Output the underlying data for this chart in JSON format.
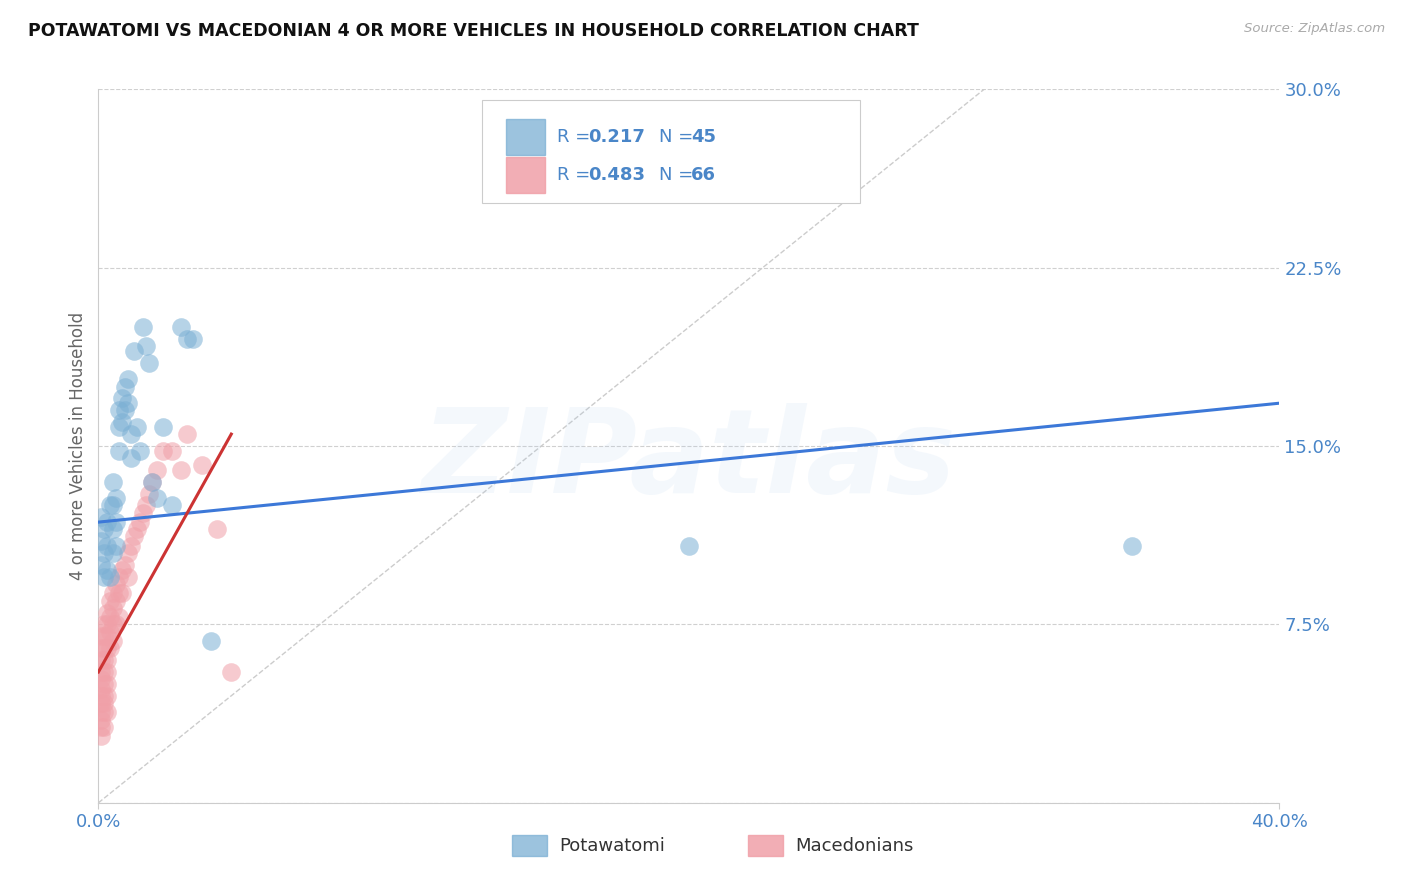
{
  "title": "POTAWATOMI VS MACEDONIAN 4 OR MORE VEHICLES IN HOUSEHOLD CORRELATION CHART",
  "source": "Source: ZipAtlas.com",
  "ylabel": "4 or more Vehicles in Household",
  "xlim": [
    0.0,
    0.4
  ],
  "ylim": [
    0.0,
    0.3
  ],
  "yticks": [
    0.0,
    0.075,
    0.15,
    0.225,
    0.3
  ],
  "color_blue": "#7bafd4",
  "color_pink": "#f0a0a8",
  "color_blue_line": "#3c78d8",
  "color_pink_line": "#cc3333",
  "color_diag": "#cccccc",
  "color_text_blue": "#4a86c8",
  "blue_r": "0.217",
  "blue_n": "45",
  "pink_r": "0.483",
  "pink_n": "66",
  "watermark": "ZIPatlas",
  "label_potawatomi": "Potawatomi",
  "label_macedonians": "Macedonians",
  "potawatomi_x": [
    0.001,
    0.001,
    0.001,
    0.002,
    0.002,
    0.002,
    0.003,
    0.003,
    0.003,
    0.004,
    0.004,
    0.005,
    0.005,
    0.005,
    0.005,
    0.006,
    0.006,
    0.006,
    0.007,
    0.007,
    0.007,
    0.008,
    0.008,
    0.009,
    0.009,
    0.01,
    0.01,
    0.011,
    0.011,
    0.012,
    0.013,
    0.014,
    0.015,
    0.016,
    0.017,
    0.018,
    0.02,
    0.022,
    0.025,
    0.028,
    0.03,
    0.032,
    0.038,
    0.2,
    0.35
  ],
  "potawatomi_y": [
    0.12,
    0.11,
    0.1,
    0.115,
    0.105,
    0.095,
    0.118,
    0.108,
    0.098,
    0.125,
    0.095,
    0.135,
    0.125,
    0.115,
    0.105,
    0.128,
    0.118,
    0.108,
    0.165,
    0.158,
    0.148,
    0.17,
    0.16,
    0.175,
    0.165,
    0.178,
    0.168,
    0.155,
    0.145,
    0.19,
    0.158,
    0.148,
    0.2,
    0.192,
    0.185,
    0.135,
    0.128,
    0.158,
    0.125,
    0.2,
    0.195,
    0.195,
    0.068,
    0.108,
    0.108
  ],
  "macedonian_x": [
    0.001,
    0.001,
    0.001,
    0.001,
    0.001,
    0.001,
    0.001,
    0.001,
    0.001,
    0.001,
    0.001,
    0.001,
    0.002,
    0.002,
    0.002,
    0.002,
    0.002,
    0.002,
    0.002,
    0.002,
    0.002,
    0.002,
    0.003,
    0.003,
    0.003,
    0.003,
    0.003,
    0.003,
    0.003,
    0.003,
    0.003,
    0.004,
    0.004,
    0.004,
    0.004,
    0.005,
    0.005,
    0.005,
    0.005,
    0.006,
    0.006,
    0.006,
    0.007,
    0.007,
    0.007,
    0.008,
    0.008,
    0.009,
    0.01,
    0.01,
    0.011,
    0.012,
    0.013,
    0.014,
    0.015,
    0.016,
    0.017,
    0.018,
    0.02,
    0.022,
    0.025,
    0.028,
    0.03,
    0.035,
    0.04,
    0.045
  ],
  "macedonian_y": [
    0.07,
    0.065,
    0.06,
    0.055,
    0.052,
    0.048,
    0.045,
    0.042,
    0.038,
    0.035,
    0.032,
    0.028,
    0.075,
    0.07,
    0.065,
    0.06,
    0.055,
    0.05,
    0.045,
    0.042,
    0.038,
    0.032,
    0.08,
    0.075,
    0.07,
    0.065,
    0.06,
    0.055,
    0.05,
    0.045,
    0.038,
    0.085,
    0.078,
    0.072,
    0.065,
    0.088,
    0.082,
    0.075,
    0.068,
    0.092,
    0.085,
    0.075,
    0.095,
    0.088,
    0.078,
    0.098,
    0.088,
    0.1,
    0.105,
    0.095,
    0.108,
    0.112,
    0.115,
    0.118,
    0.122,
    0.125,
    0.13,
    0.135,
    0.14,
    0.148,
    0.148,
    0.14,
    0.155,
    0.142,
    0.115,
    0.055
  ],
  "blue_line_x": [
    0.0,
    0.4
  ],
  "blue_line_y": [
    0.118,
    0.168
  ],
  "pink_line_x": [
    0.0,
    0.045
  ],
  "pink_line_y": [
    0.055,
    0.155
  ],
  "background_color": "#ffffff",
  "grid_color": "#d0d0d0"
}
